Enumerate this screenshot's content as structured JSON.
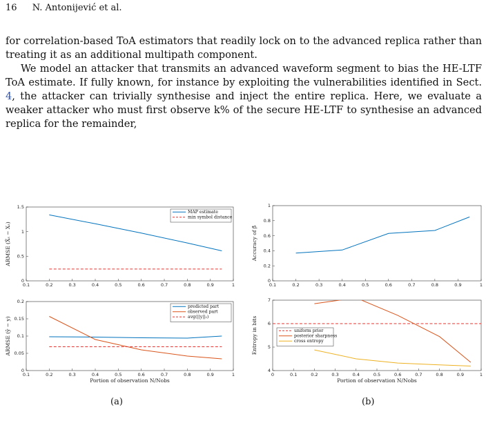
{
  "header": {
    "page_number": "16",
    "authors": "N. Antonijević et al."
  },
  "body": {
    "para1": "for correlation-based ToA estimators that readily lock on to the advanced replica rather than treating it as an additional multipath component.",
    "para2_a": "We model an attacker that transmits an advanced waveform segment to bias the HE-LTF ToA estimate. If fully known, for instance by exploiting the vulnerabilities identified in Sect. ",
    "para2_ref": "4",
    "para2_b": ", the attacker can trivially synthesise and inject the entire replica. Here, we evaluate a weaker attacker who must first observe k% of the secure HE-LTF to synthesise an advanced replica for the remainder,"
  },
  "captions": {
    "a": "(a)",
    "b": "(b)"
  },
  "chart_data": [
    {
      "type": "line",
      "panel": "a-top",
      "ylabel": "ARMSE (X̂ₛ − Xₛ)",
      "xlabel": "",
      "xlim": [
        0.1,
        1
      ],
      "ylim": [
        0,
        1.5
      ],
      "xticks": [
        "0.1",
        "0.2",
        "0.3",
        "0.4",
        "0.5",
        "0.6",
        "0.7",
        "0.8",
        "0.9",
        "1"
      ],
      "yticks": [
        "0",
        "0.5",
        "1",
        "1.5"
      ],
      "legend": "top-right",
      "series": [
        {
          "name": "MAP estimate",
          "color": "#0072bd",
          "dash": "solid",
          "x": [
            0.2,
            0.4,
            0.6,
            0.8,
            0.95
          ],
          "y": [
            1.34,
            1.16,
            0.97,
            0.77,
            0.61
          ]
        },
        {
          "name": "min symbol distance",
          "color": "#e0332f",
          "dash": "dashed",
          "x": [
            0.2,
            0.95
          ],
          "y": [
            0.24,
            0.24
          ]
        }
      ]
    },
    {
      "type": "line",
      "panel": "b-top",
      "ylabel": "Accuracy of β̂",
      "xlabel": "",
      "xlim": [
        0.1,
        1
      ],
      "ylim": [
        0,
        1
      ],
      "xticks": [
        "0.1",
        "0.2",
        "0.3",
        "0.4",
        "0.5",
        "0.6",
        "0.7",
        "0.8",
        "0.9",
        "1"
      ],
      "yticks": [
        "0",
        "0.2",
        "0.4",
        "0.6",
        "0.8",
        "1"
      ],
      "series": [
        {
          "name": "",
          "color": "#0072bd",
          "dash": "solid",
          "x": [
            0.2,
            0.4,
            0.6,
            0.8,
            0.95
          ],
          "y": [
            0.37,
            0.41,
            0.63,
            0.67,
            0.85
          ]
        }
      ]
    },
    {
      "type": "line",
      "panel": "a-bottom",
      "ylabel": "ARMSE (ŷ − y)",
      "xlabel": "Portion of observation N/Nobs",
      "xlim": [
        0.1,
        1
      ],
      "ylim": [
        0,
        0.2
      ],
      "xticks": [
        "0.1",
        "0.2",
        "0.3",
        "0.4",
        "0.5",
        "0.6",
        "0.7",
        "0.8",
        "0.9",
        "1"
      ],
      "yticks": [
        "0",
        "0.05",
        "0.1",
        "0.15",
        "0.2"
      ],
      "legend": "top-right",
      "series": [
        {
          "name": "predicted part",
          "color": "#0072bd",
          "dash": "solid",
          "x": [
            0.2,
            0.4,
            0.6,
            0.8,
            0.95
          ],
          "y": [
            0.098,
            0.097,
            0.095,
            0.094,
            0.1
          ]
        },
        {
          "name": "observed part",
          "color": "#d95319",
          "dash": "solid",
          "x": [
            0.2,
            0.4,
            0.6,
            0.8,
            0.95
          ],
          "y": [
            0.157,
            0.09,
            0.06,
            0.042,
            0.034
          ]
        },
        {
          "name": "avg(||y||₂)",
          "color": "#e0332f",
          "dash": "dashed",
          "x": [
            0.2,
            0.95
          ],
          "y": [
            0.069,
            0.069
          ]
        }
      ]
    },
    {
      "type": "line",
      "panel": "b-bottom",
      "ylabel": "Entropy in bits",
      "xlabel": "Portion of observation N/Nobs",
      "xlim": [
        0,
        1
      ],
      "ylim": [
        4,
        7
      ],
      "xticks": [
        "0",
        "0.1",
        "0.2",
        "0.3",
        "0.4",
        "0.5",
        "0.6",
        "0.7",
        "0.8",
        "0.9",
        "1"
      ],
      "yticks": [
        "4",
        "5",
        "6",
        "7"
      ],
      "legend": "left",
      "series": [
        {
          "name": "uniform prior",
          "color": "#e0332f",
          "dash": "dashed",
          "x": [
            0,
            1
          ],
          "y": [
            6,
            6
          ]
        },
        {
          "name": "posterior sharpness",
          "color": "#d95319",
          "dash": "solid",
          "x": [
            0.2,
            0.4,
            0.6,
            0.8,
            0.95
          ],
          "y": [
            6.85,
            7.1,
            6.35,
            5.45,
            4.35
          ]
        },
        {
          "name": "cross entropy",
          "color": "#edb120",
          "dash": "solid",
          "x": [
            0.2,
            0.4,
            0.6,
            0.8,
            0.95
          ],
          "y": [
            4.88,
            4.5,
            4.32,
            4.24,
            4.19
          ]
        }
      ]
    }
  ]
}
